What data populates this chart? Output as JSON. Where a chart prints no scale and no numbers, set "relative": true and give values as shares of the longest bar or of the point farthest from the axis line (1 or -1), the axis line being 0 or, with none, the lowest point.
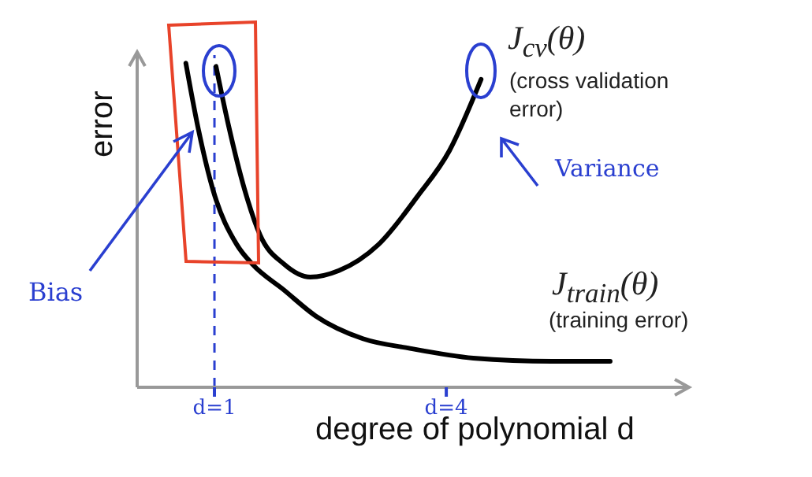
{
  "chart_data": {
    "type": "line",
    "xlabel": "degree of polynomial d",
    "ylabel": "error",
    "relative": true,
    "xlim": [
      0,
      7.1
    ],
    "xticks": [
      {
        "value": 1,
        "label": "d=1"
      },
      {
        "value": 4,
        "label": "d=4"
      }
    ],
    "series": [
      {
        "name": "J$_{cv}$(θ)",
        "color": "#000000",
        "x": [
          1.02,
          1.18,
          1.39,
          1.59,
          1.9,
          2.24,
          2.61,
          3.12,
          3.63,
          4.04,
          4.45
        ],
        "values": [
          0.99,
          0.81,
          0.61,
          0.47,
          0.38,
          0.34,
          0.36,
          0.44,
          0.59,
          0.73,
          0.95
        ]
      },
      {
        "name": "J$_{train}$(θ)",
        "color": "#000000",
        "x": [
          0.63,
          0.78,
          0.98,
          1.29,
          1.49,
          1.9,
          2.31,
          2.92,
          3.53,
          4.35,
          5.37,
          6.12
        ],
        "values": [
          1.0,
          0.81,
          0.61,
          0.44,
          0.38,
          0.3,
          0.22,
          0.15,
          0.12,
          0.09,
          0.08,
          0.08
        ]
      }
    ],
    "annotations": [
      "(cross validation error)",
      "(training error)",
      "Bias",
      "Variance"
    ],
    "ref_lines": [
      {
        "axis": "x",
        "value": 1,
        "color": "#2a3fd0",
        "line_style": "dashed"
      }
    ],
    "grid": false,
    "legend": false,
    "marker": "none",
    "line_style": "solid"
  }
}
